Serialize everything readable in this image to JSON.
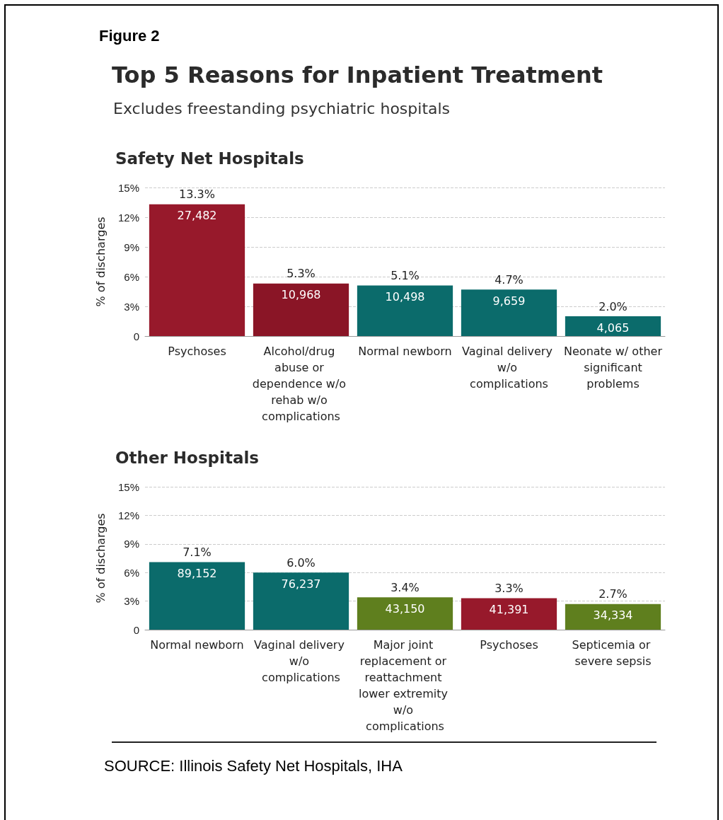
{
  "chart_data": [
    {
      "type": "other",
      "title": "Top 5 Reasons for Inpatient Treatment",
      "subtitle": "Excludes freestanding psychiatric hospitals",
      "annotations": [
        "Figure 2"
      ]
    },
    {
      "type": "bar",
      "title": "Safety Net Hospitals",
      "ylabel": "% of discharges",
      "categories": [
        "Psychoses",
        "Alcohol/drug abuse or dependence w/o rehab w/o complications",
        "Normal newborn",
        "Vaginal delivery w/o complications",
        "Neonate w/ other significant problems"
      ],
      "values": [
        13.3,
        5.3,
        5.1,
        4.7,
        2.0
      ],
      "colors": [
        "#97192b",
        "#8a1526",
        "#0b6b6b",
        "#0b6b6b",
        "#0b6b6b"
      ],
      "value_labels": [
        "13.3%",
        "5.3%",
        "5.1%",
        "4.7%",
        "2.0%"
      ],
      "annotations": [
        {
          "text": "27,482",
          "x": "Psychoses",
          "y": 13.3
        },
        {
          "text": "10,968",
          "x": "Alcohol/drug abuse or dependence w/o rehab w/o complications",
          "y": 5.3
        },
        {
          "text": "10,498",
          "x": "Normal newborn",
          "y": 5.1
        },
        {
          "text": "9,659",
          "x": "Vaginal delivery w/o complications",
          "y": 4.7
        },
        {
          "text": "4,065",
          "x": "Neonate w/ other significant problems",
          "y": 2.0
        }
      ],
      "ylim": [
        0,
        15
      ],
      "yticks": [
        0,
        {
          "value": 3,
          "label": "3%"
        },
        {
          "value": 6,
          "label": "6%"
        },
        {
          "value": 9,
          "label": "9%"
        },
        {
          "value": 12,
          "label": "12%"
        },
        {
          "value": 15,
          "label": "15%"
        }
      ],
      "grid": "y"
    },
    {
      "type": "bar",
      "title": "Other Hospitals",
      "ylabel": "% of discharges",
      "categories": [
        "Normal newborn",
        "Vaginal delivery w/o complications",
        "Major joint replacement or reattachment lower extremity w/o complications",
        "Psychoses",
        "Septicemia or severe sepsis"
      ],
      "values": [
        7.1,
        6.0,
        3.4,
        3.3,
        2.7
      ],
      "colors": [
        "#0b6b6b",
        "#0b6b6b",
        "#5f7f1e",
        "#97192b",
        "#5f7f1e"
      ],
      "value_labels": [
        "7.1%",
        "6.0%",
        "3.4%",
        "3.3%",
        "2.7%"
      ],
      "annotations": [
        {
          "text": "89,152",
          "x": "Normal newborn",
          "y": 7.1
        },
        {
          "text": "76,237",
          "x": "Vaginal delivery w/o complications",
          "y": 6.0
        },
        {
          "text": "43,150",
          "x": "Major joint replacement or reattachment lower extremity w/o complications",
          "y": 3.4
        },
        {
          "text": "41,391",
          "x": "Psychoses",
          "y": 3.3
        },
        {
          "text": "34,334",
          "x": "Septicemia or severe sepsis",
          "y": 2.7
        },
        "SOURCE: Illinois Safety Net Hospitals, IHA"
      ],
      "ylim": [
        0,
        15
      ],
      "yticks": [
        0,
        {
          "value": 3,
          "label": "3%"
        },
        {
          "value": 6,
          "label": "6%"
        },
        {
          "value": 9,
          "label": "9%"
        },
        {
          "value": 12,
          "label": "12%"
        },
        {
          "value": 15,
          "label": "15%"
        }
      ],
      "grid": "y"
    }
  ]
}
